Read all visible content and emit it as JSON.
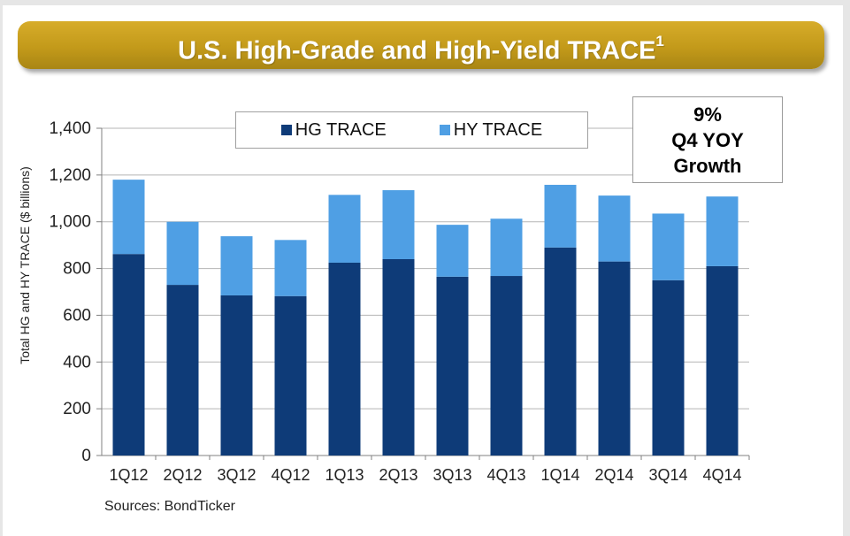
{
  "title": {
    "main": "U.S. High-Grade and High-Yield TRACE",
    "superscript": "1"
  },
  "colors": {
    "banner": "#c9a020",
    "hg": "#0e3b78",
    "hy": "#4f9fe4",
    "grid": "#b5b5b5"
  },
  "legend": {
    "hg_label": "HG TRACE",
    "hy_label": "HY TRACE"
  },
  "callout": {
    "line1": "9%",
    "line2": "Q4 YOY",
    "line3": "Growth"
  },
  "source": "Sources: BondTicker",
  "chart_data": {
    "type": "bar",
    "stacked": true,
    "title": "U.S. High-Grade and High-Yield TRACE",
    "xlabel": "",
    "ylabel": "Total HG and HY TRACE ($ billions)",
    "ylim": [
      0,
      1400
    ],
    "yticks": [
      0,
      200,
      400,
      600,
      800,
      1000,
      1200,
      1400
    ],
    "ytick_labels": [
      "0",
      "200",
      "400",
      "600",
      "800",
      "1,000",
      "1,200",
      "1,400"
    ],
    "categories": [
      "1Q12",
      "2Q12",
      "3Q12",
      "4Q12",
      "1Q13",
      "2Q13",
      "3Q13",
      "4Q13",
      "1Q14",
      "2Q14",
      "3Q14",
      "4Q14"
    ],
    "series": [
      {
        "name": "HG TRACE",
        "values": [
          862,
          730,
          685,
          682,
          825,
          840,
          765,
          768,
          890,
          830,
          750,
          810
        ]
      },
      {
        "name": "HY TRACE",
        "values": [
          318,
          270,
          253,
          240,
          290,
          295,
          222,
          245,
          268,
          282,
          285,
          298
        ]
      }
    ],
    "legend_position": "top-center",
    "grid": true
  }
}
